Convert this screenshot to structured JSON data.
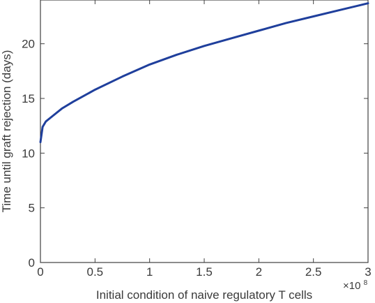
{
  "chart_data": {
    "type": "line",
    "title": "",
    "xlabel": "Initial condition of naive regulatory T cells",
    "ylabel": "Time until graft rejection (days)",
    "x_multiplier": "×10",
    "x_multiplier_exponent": "8",
    "xlim": [
      0,
      3
    ],
    "ylim": [
      0,
      24
    ],
    "xticks": [
      0,
      0.5,
      1,
      1.5,
      2,
      2.5,
      3
    ],
    "xtick_labels": [
      "0",
      "0.5",
      "1",
      "1.5",
      "2",
      "2.5",
      "3"
    ],
    "yticks": [
      0,
      5,
      10,
      15,
      20
    ],
    "ytick_labels": [
      "0",
      "5",
      "10",
      "15",
      "20"
    ],
    "grid": false,
    "line_color": "#1f3f9c",
    "series": [
      {
        "x": [
          0,
          0.01,
          0.02,
          0.05,
          0.1,
          0.2,
          0.3,
          0.5,
          0.75,
          1.0,
          1.25,
          1.5,
          1.75,
          2.0,
          2.25,
          2.5,
          2.75,
          3.0
        ],
        "y": [
          11.0,
          11.7,
          12.4,
          12.9,
          13.3,
          14.1,
          14.7,
          15.8,
          17.0,
          18.1,
          19.0,
          19.8,
          20.5,
          21.2,
          21.9,
          22.5,
          23.1,
          23.7
        ]
      }
    ]
  }
}
